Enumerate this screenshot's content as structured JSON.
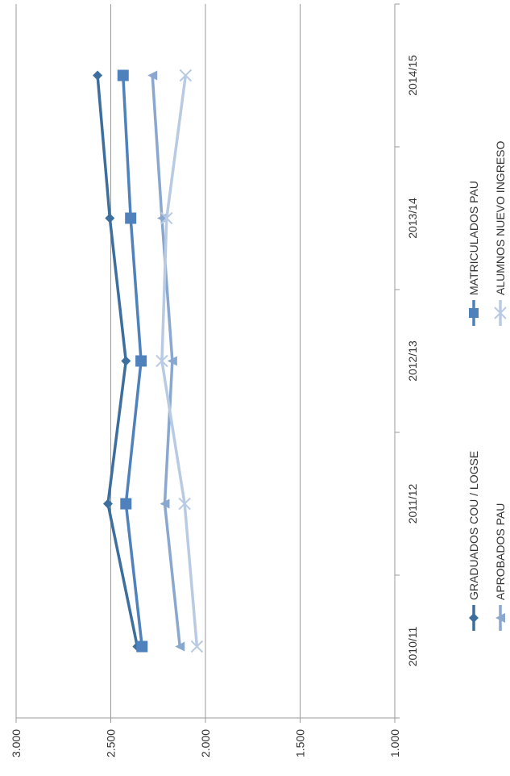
{
  "chart_data": {
    "type": "line",
    "orientation": "rotated-90-clockwise",
    "title": "",
    "xlabel": "",
    "ylabel": "",
    "categories": [
      "2010/11",
      "2011/12",
      "2012/13",
      "2013/14",
      "2014/15"
    ],
    "value_ticks": [
      "1.000",
      "1.500",
      "2.000",
      "2.500",
      "3.000"
    ],
    "ylim": [
      1000,
      3000
    ],
    "grid": true,
    "legend_position": "right",
    "series": [
      {
        "name": "GRADUADOS COU / LOGSE",
        "marker": "diamond",
        "color": "#3d6f9e",
        "values": [
          2360,
          2515,
          2420,
          2505,
          2570
        ]
      },
      {
        "name": "MATRICULADOS PAU",
        "marker": "square",
        "color": "#4f81bd",
        "values": [
          2335,
          2420,
          2340,
          2395,
          2435
        ]
      },
      {
        "name": "APROBADOS PAU",
        "marker": "triangle",
        "color": "#8aa8cf",
        "values": [
          2135,
          2215,
          2175,
          2230,
          2280
        ]
      },
      {
        "name": "ALUMNOS NUEVO INGRESO",
        "marker": "x",
        "color": "#b9cbe2",
        "values": [
          2045,
          2110,
          2230,
          2205,
          2105
        ]
      }
    ]
  }
}
